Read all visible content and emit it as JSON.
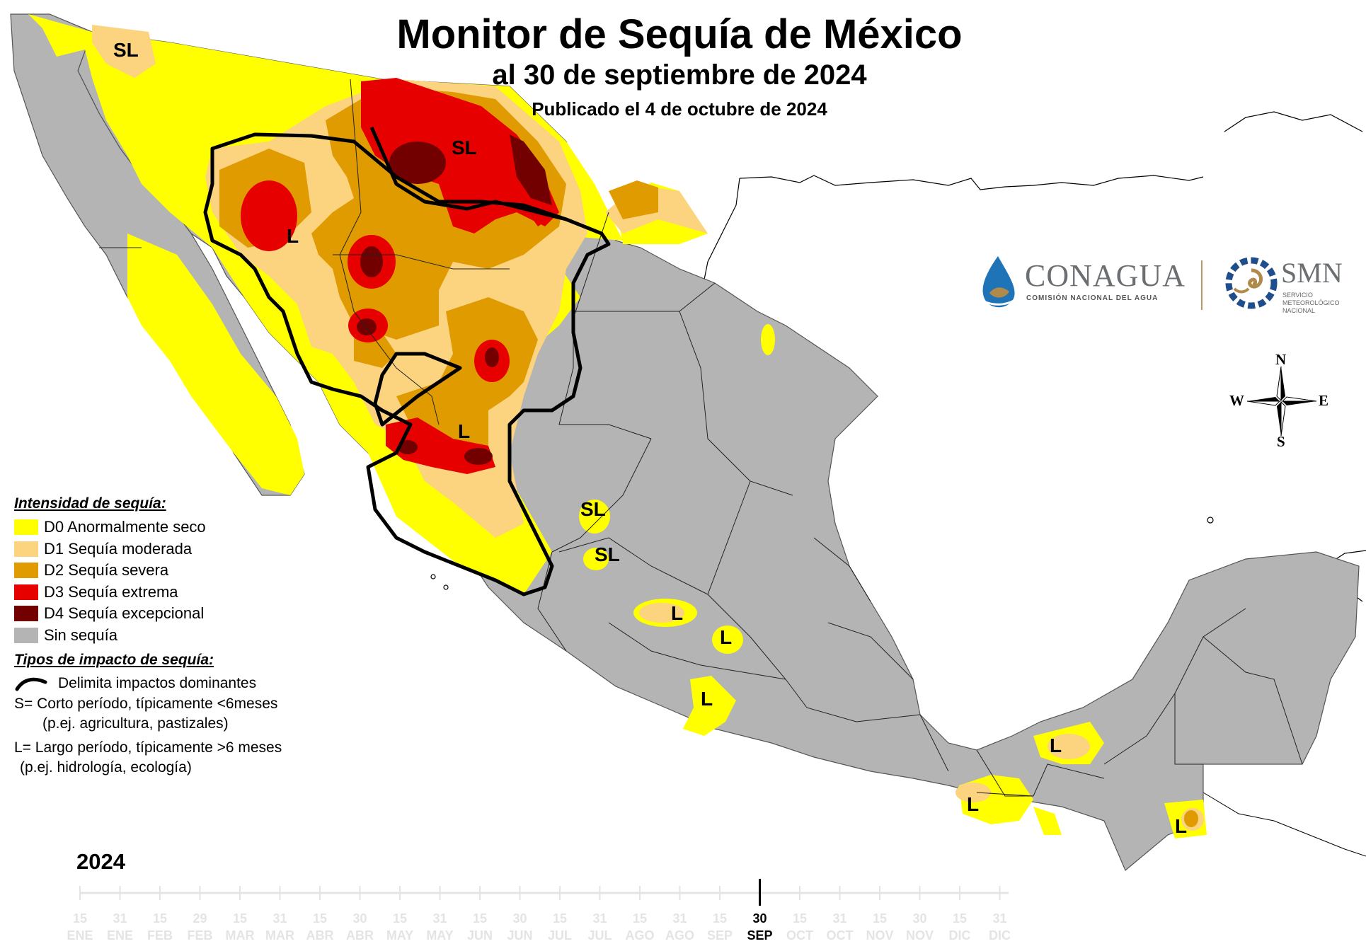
{
  "title": "Monitor de Sequía de México",
  "subtitle": "al 30 de septiembre de 2024",
  "published": "Publicado el 4 de octubre de 2024",
  "legend": {
    "intensity_heading": "Intensidad de sequía:",
    "categories": [
      {
        "label": "D0 Anormalmente seco",
        "color": "#ffff00"
      },
      {
        "label": "D1 Sequía moderada",
        "color": "#fcd37f"
      },
      {
        "label": "D2 Sequía severa",
        "color": "#e09b00"
      },
      {
        "label": "D3 Sequía extrema",
        "color": "#e60000"
      },
      {
        "label": "D4 Sequía excepcional",
        "color": "#730000"
      },
      {
        "label": "Sin sequía",
        "color": "#b4b4b4"
      }
    ],
    "impact_heading": "Tipos de impacto de sequía:",
    "impact_line": "Delimita impactos dominantes",
    "short_term_1": "S= Corto período, típicamente <6meses",
    "short_term_2": "(p.ej. agricultura, pastizales)",
    "long_term_1": "L= Largo período, típicamente >6 meses",
    "long_term_2": "(p.ej. hidrología, ecología)"
  },
  "map_labels": {
    "nw_corner": "SL",
    "chihuahua_north": "SL",
    "sonora": "L",
    "sinaloa": "L",
    "zacatecas": "SL",
    "aguascalientes": "SL",
    "guanajuato": "L",
    "queretaro": "L",
    "michoacan": "L",
    "tabasco": "L",
    "oaxaca": "L",
    "chiapas": "L"
  },
  "logos": {
    "conagua_name": "CONAGUA",
    "conagua_sub": "COMISIÓN NACIONAL DEL AGUA",
    "smn_name": "SMN",
    "smn_sub": "SERVICIO METEOROLÓGICO NACIONAL"
  },
  "compass": {
    "n": "N",
    "s": "S",
    "e": "E",
    "w": "W"
  },
  "timeline": {
    "year": "2024",
    "current_day": "30",
    "current_month": "SEP",
    "ticks": [
      {
        "day": "15",
        "month": "ENE"
      },
      {
        "day": "31",
        "month": "ENE"
      },
      {
        "day": "15",
        "month": "FEB"
      },
      {
        "day": "29",
        "month": "FEB"
      },
      {
        "day": "15",
        "month": "MAR"
      },
      {
        "day": "31",
        "month": "MAR"
      },
      {
        "day": "15",
        "month": "ABR"
      },
      {
        "day": "30",
        "month": "ABR"
      },
      {
        "day": "15",
        "month": "MAY"
      },
      {
        "day": "31",
        "month": "MAY"
      },
      {
        "day": "15",
        "month": "JUN"
      },
      {
        "day": "30",
        "month": "JUN"
      },
      {
        "day": "15",
        "month": "JUL"
      },
      {
        "day": "31",
        "month": "JUL"
      },
      {
        "day": "15",
        "month": "AGO"
      },
      {
        "day": "31",
        "month": "AGO"
      },
      {
        "day": "15",
        "month": "SEP"
      },
      {
        "day": "30",
        "month": "SEP"
      },
      {
        "day": "15",
        "month": "OCT"
      },
      {
        "day": "31",
        "month": "OCT"
      },
      {
        "day": "15",
        "month": "NOV"
      },
      {
        "day": "30",
        "month": "NOV"
      },
      {
        "day": "15",
        "month": "DIC"
      },
      {
        "day": "31",
        "month": "DIC"
      }
    ]
  }
}
